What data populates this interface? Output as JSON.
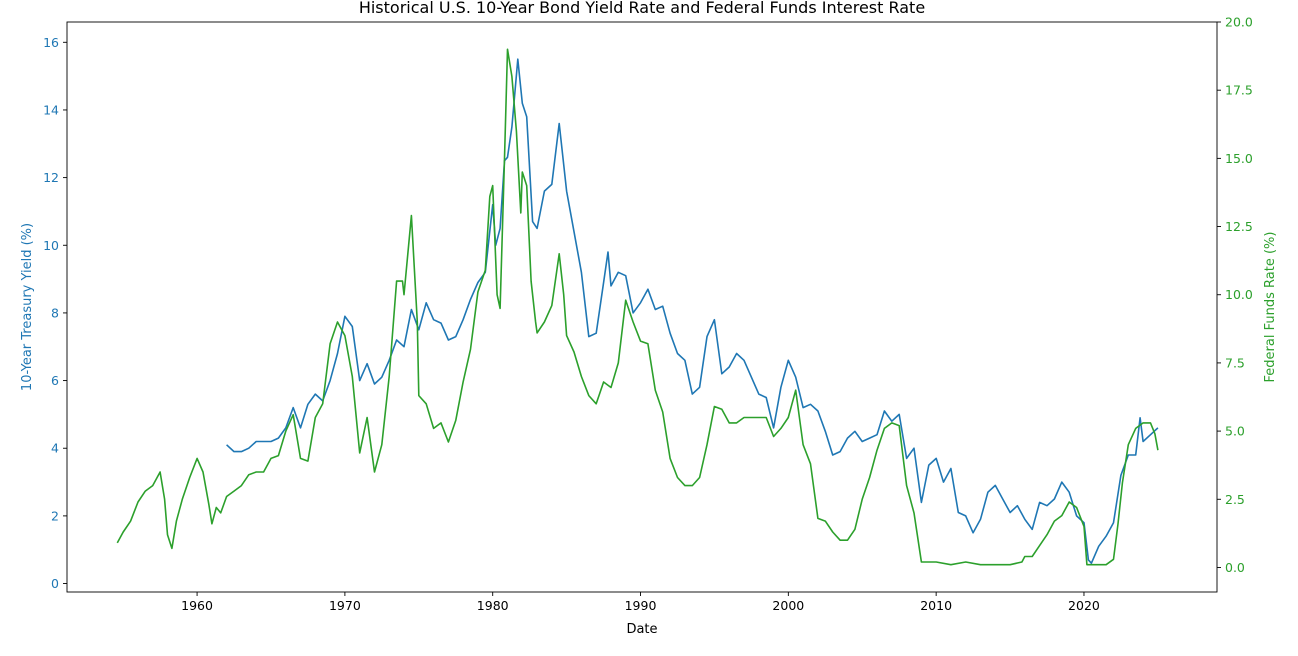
{
  "chart_data": {
    "type": "line",
    "title": "Historical U.S. 10-Year Bond Yield Rate and Federal Funds Interest Rate",
    "xlabel": "Date",
    "xlim": [
      1951.2,
      2029.0
    ],
    "x_ticks": [
      1960,
      1970,
      1980,
      1990,
      2000,
      2010,
      2020
    ],
    "left_axis": {
      "label": "10-Year Treasury Yield (%)",
      "ylim": [
        -0.25,
        16.6
      ],
      "ticks": [
        0,
        2,
        4,
        6,
        8,
        10,
        12,
        14,
        16
      ],
      "color": "#1f77b4"
    },
    "right_axis": {
      "label": "Federal Funds Rate (%)",
      "ylim": [
        -0.9,
        20.0
      ],
      "ticks": [
        "0.0",
        "2.5",
        "5.0",
        "7.5",
        "10.0",
        "12.5",
        "15.0",
        "17.5",
        "20.0"
      ],
      "color": "#2ca02c"
    },
    "grid": false,
    "legend": "none",
    "series": [
      {
        "axis": "left",
        "color": "#1f77b4",
        "x": [
          1962.0,
          1962.5,
          1963.0,
          1963.5,
          1964.0,
          1964.5,
          1965.0,
          1965.5,
          1966.0,
          1966.5,
          1967.0,
          1967.5,
          1968.0,
          1968.5,
          1969.0,
          1969.5,
          1970.0,
          1970.5,
          1971.0,
          1971.5,
          1972.0,
          1972.5,
          1973.0,
          1973.5,
          1974.0,
          1974.5,
          1975.0,
          1975.5,
          1976.0,
          1976.5,
          1977.0,
          1977.5,
          1978.0,
          1978.5,
          1979.0,
          1979.5,
          1980.0,
          1980.2,
          1980.5,
          1980.8,
          1981.0,
          1981.3,
          1981.7,
          1982.0,
          1982.3,
          1982.7,
          1983.0,
          1983.5,
          1984.0,
          1984.5,
          1985.0,
          1985.5,
          1986.0,
          1986.5,
          1987.0,
          1987.5,
          1987.8,
          1988.0,
          1988.5,
          1989.0,
          1989.5,
          1990.0,
          1990.5,
          1991.0,
          1991.5,
          1992.0,
          1992.5,
          1993.0,
          1993.5,
          1994.0,
          1994.5,
          1995.0,
          1995.5,
          1996.0,
          1996.5,
          1997.0,
          1997.5,
          1998.0,
          1998.5,
          1999.0,
          1999.5,
          2000.0,
          2000.5,
          2001.0,
          2001.5,
          2002.0,
          2002.5,
          2003.0,
          2003.5,
          2004.0,
          2004.5,
          2005.0,
          2005.5,
          2006.0,
          2006.5,
          2007.0,
          2007.5,
          2008.0,
          2008.5,
          2009.0,
          2009.5,
          2010.0,
          2010.5,
          2011.0,
          2011.5,
          2012.0,
          2012.5,
          2013.0,
          2013.5,
          2014.0,
          2014.5,
          2015.0,
          2015.5,
          2016.0,
          2016.5,
          2017.0,
          2017.5,
          2018.0,
          2018.5,
          2019.0,
          2019.5,
          2020.0,
          2020.3,
          2020.5,
          2021.0,
          2021.5,
          2022.0,
          2022.5,
          2023.0,
          2023.5,
          2023.8,
          2024.0,
          2024.5,
          2025.0
        ],
        "y": [
          4.1,
          3.9,
          3.9,
          4.0,
          4.2,
          4.2,
          4.2,
          4.3,
          4.6,
          5.2,
          4.6,
          5.3,
          5.6,
          5.4,
          6.0,
          6.8,
          7.9,
          7.6,
          6.0,
          6.5,
          5.9,
          6.1,
          6.6,
          7.2,
          7.0,
          8.1,
          7.5,
          8.3,
          7.8,
          7.7,
          7.2,
          7.3,
          7.8,
          8.4,
          8.9,
          9.2,
          11.2,
          10.0,
          10.5,
          12.5,
          12.6,
          13.5,
          15.5,
          14.2,
          13.8,
          10.7,
          10.5,
          11.6,
          11.8,
          13.6,
          11.6,
          10.4,
          9.2,
          7.3,
          7.4,
          8.9,
          9.8,
          8.8,
          9.2,
          9.1,
          8.0,
          8.3,
          8.7,
          8.1,
          8.2,
          7.4,
          6.8,
          6.6,
          5.6,
          5.8,
          7.3,
          7.8,
          6.2,
          6.4,
          6.8,
          6.6,
          6.1,
          5.6,
          5.5,
          4.6,
          5.8,
          6.6,
          6.1,
          5.2,
          5.3,
          5.1,
          4.5,
          3.8,
          3.9,
          4.3,
          4.5,
          4.2,
          4.3,
          4.4,
          5.1,
          4.8,
          5.0,
          3.7,
          4.0,
          2.4,
          3.5,
          3.7,
          3.0,
          3.4,
          2.1,
          2.0,
          1.5,
          1.9,
          2.7,
          2.9,
          2.5,
          2.1,
          2.3,
          1.9,
          1.6,
          2.4,
          2.3,
          2.5,
          3.0,
          2.7,
          2.0,
          1.8,
          0.7,
          0.6,
          1.1,
          1.4,
          1.8,
          3.2,
          3.8,
          3.8,
          4.9,
          4.2,
          4.4,
          4.6
        ]
      },
      {
        "axis": "right",
        "color": "#2ca02c",
        "x": [
          1954.6,
          1955.0,
          1955.5,
          1956.0,
          1956.5,
          1957.0,
          1957.5,
          1957.8,
          1958.0,
          1958.3,
          1958.6,
          1959.0,
          1959.5,
          1960.0,
          1960.4,
          1960.8,
          1961.0,
          1961.3,
          1961.6,
          1962.0,
          1962.5,
          1963.0,
          1963.5,
          1964.0,
          1964.5,
          1965.0,
          1965.5,
          1966.0,
          1966.5,
          1967.0,
          1967.5,
          1968.0,
          1968.5,
          1969.0,
          1969.5,
          1970.0,
          1970.5,
          1971.0,
          1971.5,
          1972.0,
          1972.5,
          1973.0,
          1973.5,
          1973.9,
          1974.0,
          1974.5,
          1974.9,
          1975.0,
          1975.5,
          1976.0,
          1976.5,
          1977.0,
          1977.5,
          1978.0,
          1978.5,
          1979.0,
          1979.5,
          1979.8,
          1980.0,
          1980.3,
          1980.5,
          1980.8,
          1981.0,
          1981.3,
          1981.6,
          1981.9,
          1982.0,
          1982.3,
          1982.6,
          1982.9,
          1983.0,
          1983.5,
          1984.0,
          1984.5,
          1984.8,
          1985.0,
          1985.5,
          1986.0,
          1986.5,
          1987.0,
          1987.5,
          1988.0,
          1988.5,
          1989.0,
          1989.5,
          1990.0,
          1990.5,
          1991.0,
          1991.5,
          1992.0,
          1992.5,
          1993.0,
          1993.5,
          1994.0,
          1994.5,
          1995.0,
          1995.5,
          1996.0,
          1996.5,
          1997.0,
          1997.5,
          1998.0,
          1998.5,
          1999.0,
          1999.5,
          2000.0,
          2000.5,
          2001.0,
          2001.5,
          2002.0,
          2002.5,
          2003.0,
          2003.5,
          2004.0,
          2004.5,
          2005.0,
          2005.5,
          2006.0,
          2006.5,
          2007.0,
          2007.5,
          2008.0,
          2008.5,
          2009.0,
          2010.0,
          2011.0,
          2012.0,
          2013.0,
          2014.0,
          2015.0,
          2015.8,
          2016.0,
          2016.5,
          2017.0,
          2017.5,
          2018.0,
          2018.5,
          2019.0,
          2019.5,
          2020.0,
          2020.2,
          2020.5,
          2021.0,
          2021.5,
          2022.0,
          2022.3,
          2022.6,
          2023.0,
          2023.5,
          2024.0,
          2024.5,
          2024.8,
          2025.0
        ],
        "y": [
          0.9,
          1.3,
          1.7,
          2.4,
          2.8,
          3.0,
          3.5,
          2.5,
          1.2,
          0.7,
          1.7,
          2.5,
          3.3,
          4.0,
          3.5,
          2.3,
          1.6,
          2.2,
          2.0,
          2.6,
          2.8,
          3.0,
          3.4,
          3.5,
          3.5,
          4.0,
          4.1,
          5.0,
          5.6,
          4.0,
          3.9,
          5.5,
          6.0,
          8.2,
          9.0,
          8.5,
          7.0,
          4.2,
          5.5,
          3.5,
          4.5,
          7.0,
          10.5,
          10.5,
          10.0,
          12.9,
          9.0,
          6.3,
          6.0,
          5.1,
          5.3,
          4.6,
          5.4,
          6.8,
          8.0,
          10.1,
          10.9,
          13.6,
          14.0,
          10.0,
          9.5,
          15.0,
          19.0,
          18.0,
          16.0,
          13.0,
          14.5,
          14.0,
          10.5,
          9.0,
          8.6,
          9.0,
          9.6,
          11.5,
          10.0,
          8.5,
          7.9,
          7.0,
          6.3,
          6.0,
          6.8,
          6.6,
          7.5,
          9.8,
          9.0,
          8.3,
          8.2,
          6.5,
          5.7,
          4.0,
          3.3,
          3.0,
          3.0,
          3.3,
          4.5,
          5.9,
          5.8,
          5.3,
          5.3,
          5.5,
          5.5,
          5.5,
          5.5,
          4.8,
          5.1,
          5.5,
          6.5,
          4.5,
          3.8,
          1.8,
          1.7,
          1.3,
          1.0,
          1.0,
          1.4,
          2.5,
          3.3,
          4.3,
          5.1,
          5.3,
          5.2,
          3.0,
          2.0,
          0.2,
          0.2,
          0.1,
          0.2,
          0.1,
          0.1,
          0.1,
          0.2,
          0.4,
          0.4,
          0.8,
          1.2,
          1.7,
          1.9,
          2.4,
          2.2,
          1.5,
          0.1,
          0.1,
          0.1,
          0.1,
          0.3,
          1.6,
          3.1,
          4.5,
          5.1,
          5.3,
          5.3,
          4.9,
          4.3
        ]
      }
    ]
  }
}
